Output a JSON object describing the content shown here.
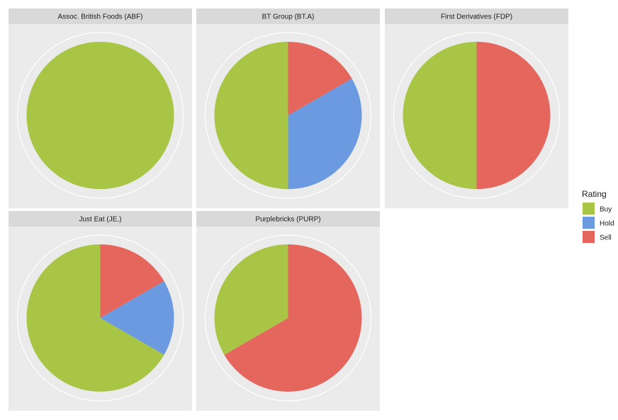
{
  "chart_data": {
    "type": "pie",
    "legend": {
      "title": "Rating",
      "placement": "right",
      "entries": [
        {
          "label": "Buy",
          "color": "#a8c545"
        },
        {
          "label": "Hold",
          "color": "#6b9ae0"
        },
        {
          "label": "Sell",
          "color": "#e5665c"
        }
      ]
    },
    "facets": [
      {
        "title": "Assoc. British Foods (ABF)",
        "slices": [
          {
            "label": "Buy",
            "value": 1
          },
          {
            "label": "Hold",
            "value": 0
          },
          {
            "label": "Sell",
            "value": 0
          }
        ]
      },
      {
        "title": "BT Group (BT.A)",
        "slices": [
          {
            "label": "Sell",
            "value": 1
          },
          {
            "label": "Hold",
            "value": 2
          },
          {
            "label": "Buy",
            "value": 3
          }
        ]
      },
      {
        "title": "First Derivatives (FDP)",
        "slices": [
          {
            "label": "Sell",
            "value": 1
          },
          {
            "label": "Hold",
            "value": 0
          },
          {
            "label": "Buy",
            "value": 1
          }
        ]
      },
      {
        "title": "Just Eat (JE.)",
        "slices": [
          {
            "label": "Sell",
            "value": 1
          },
          {
            "label": "Hold",
            "value": 1
          },
          {
            "label": "Buy",
            "value": 4
          }
        ]
      },
      {
        "title": "Purplebricks (PURP)",
        "slices": [
          {
            "label": "Sell",
            "value": 2
          },
          {
            "label": "Hold",
            "value": 0
          },
          {
            "label": "Buy",
            "value": 1
          }
        ]
      }
    ]
  }
}
